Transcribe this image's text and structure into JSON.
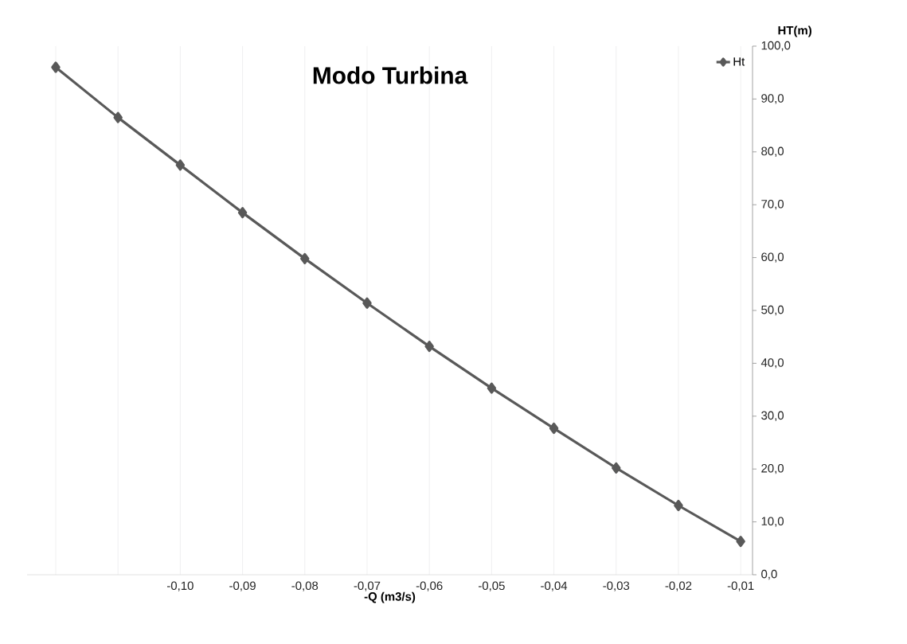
{
  "chart_data": {
    "type": "line",
    "title": "Modo Turbina",
    "xlabel": "-Q (m3/s)",
    "ylabel": "HT(m)",
    "categories": [
      null,
      null,
      "-0,10",
      "-0,09",
      "-0,08",
      "-0,07",
      "-0,06",
      "-0,05",
      "-0,04",
      "-0,03",
      "-0,02",
      "-0,01"
    ],
    "series": [
      {
        "name": "Ht",
        "color": "#595959",
        "values": [
          96.0,
          86.5,
          77.5,
          68.5,
          59.8,
          51.4,
          43.2,
          35.3,
          27.7,
          20.2,
          13.1,
          6.3
        ]
      }
    ],
    "ylim": [
      0,
      100
    ],
    "yticks": [
      {
        "value": 0,
        "label": "0,0"
      },
      {
        "value": 10,
        "label": "10,0"
      },
      {
        "value": 20,
        "label": "20,0"
      },
      {
        "value": 30,
        "label": "30,0"
      },
      {
        "value": 40,
        "label": "40,0"
      },
      {
        "value": 50,
        "label": "50,0"
      },
      {
        "value": 60,
        "label": "60,0"
      },
      {
        "value": 70,
        "label": "70,0"
      },
      {
        "value": 80,
        "label": "80,0"
      },
      {
        "value": 90,
        "label": "90,0"
      },
      {
        "value": 100,
        "label": "100,0"
      }
    ],
    "grid": "x",
    "legend": "top right",
    "marker": "diamond",
    "line_style": "solid"
  }
}
